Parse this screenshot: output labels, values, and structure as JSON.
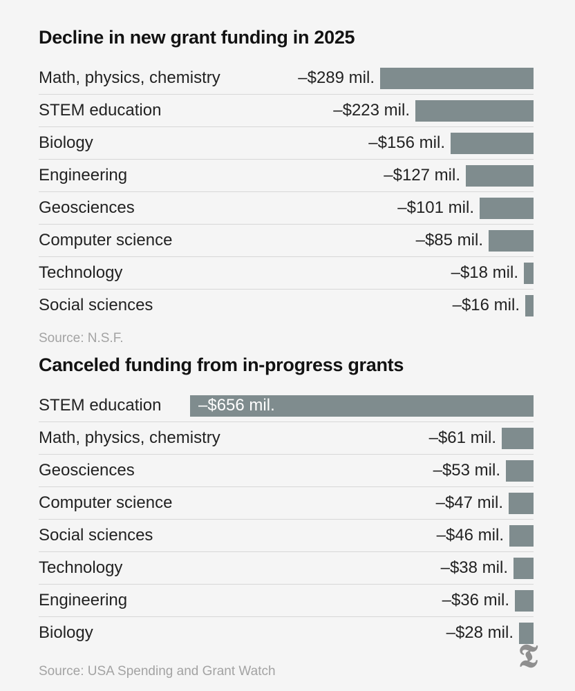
{
  "chart_data": [
    {
      "type": "bar",
      "orientation": "horizontal",
      "title": "Decline in new grant funding in 2025",
      "categories": [
        "Math, physics, chemistry",
        "STEM education",
        "Biology",
        "Engineering",
        "Geosciences",
        "Computer science",
        "Technology",
        "Social sciences"
      ],
      "values": [
        289,
        223,
        156,
        127,
        101,
        85,
        18,
        16
      ],
      "value_labels": [
        "–$289 mil.",
        "–$223 mil.",
        "–$156 mil.",
        "–$127 mil.",
        "–$101 mil.",
        "–$85 mil.",
        "–$18 mil.",
        "–$16 mil."
      ],
      "unit": "million dollars",
      "xlim": [
        0,
        289
      ],
      "source": "Source: N.S.F.",
      "bar_color": "#7f8c8e"
    },
    {
      "type": "bar",
      "orientation": "horizontal",
      "title": "Canceled funding from in-progress grants",
      "categories": [
        "STEM education",
        "Math, physics, chemistry",
        "Geosciences",
        "Computer science",
        "Social sciences",
        "Technology",
        "Engineering",
        "Biology"
      ],
      "values": [
        656,
        61,
        53,
        47,
        46,
        38,
        36,
        28
      ],
      "value_labels": [
        "–$656 mil.",
        "–$61 mil.",
        "–$53 mil.",
        "–$47 mil.",
        "–$46 mil.",
        "–$38 mil.",
        "–$36 mil.",
        "–$28 mil."
      ],
      "unit": "million dollars",
      "xlim": [
        0,
        656
      ],
      "source": "Source: USA Spending and Grant Watch",
      "bar_color": "#7f8c8e"
    }
  ],
  "logo": {
    "icon": "nyt-logo-icon",
    "glyph": "𝕿"
  },
  "colors": {
    "background": "#f5f5f5",
    "bar": "#7f8c8e",
    "source_text": "#a3a3a3"
  }
}
